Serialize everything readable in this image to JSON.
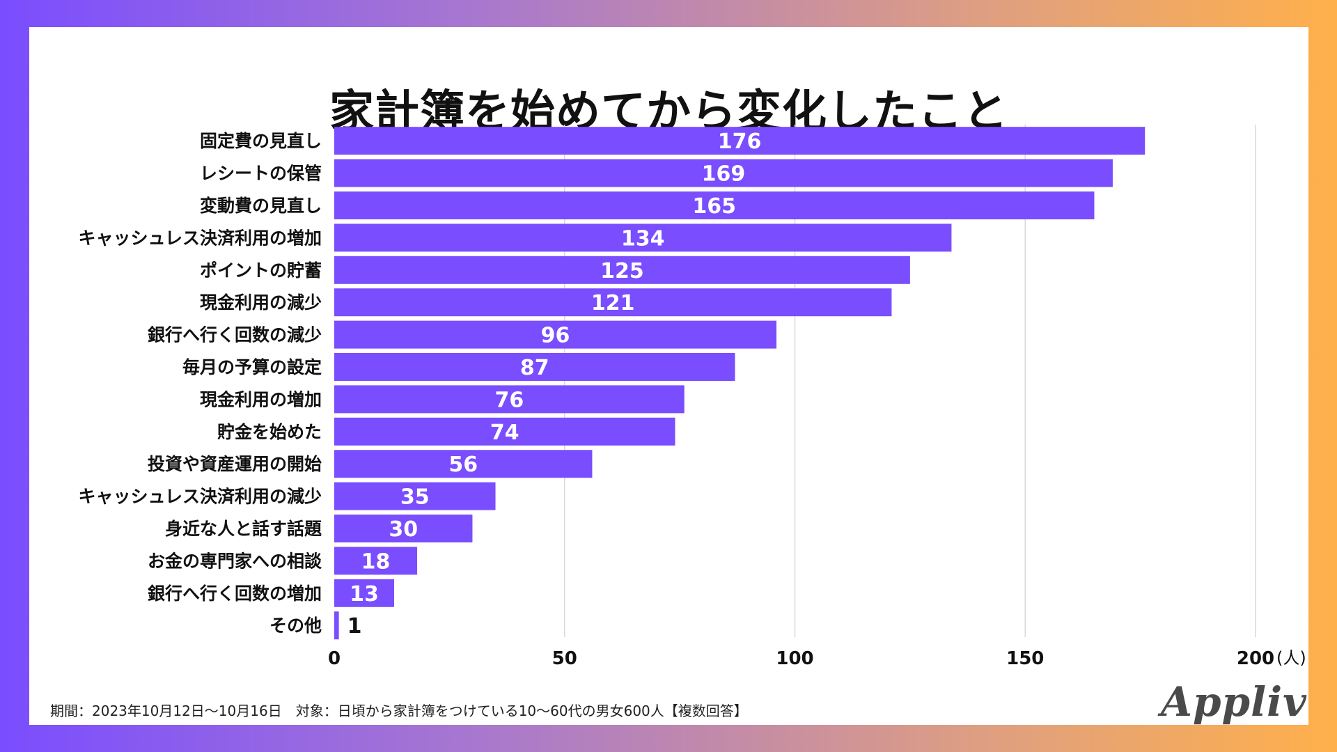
{
  "title": "家計簿を始めてから変化したこと",
  "footnote": "期間：2023年10月12日〜10月16日　対象：日頃から家計簿をつけている10〜60代の男女600人【複数回答】",
  "logo": "Appliv",
  "colors": {
    "bar": "#7a4dff",
    "grid": "#d9d9d9",
    "label": "#111111",
    "value_inside": "#ffffff",
    "value_outside": "#111111"
  },
  "chart_data": {
    "type": "bar",
    "orientation": "horizontal",
    "title": "家計簿を始めてから変化したこと",
    "categories": [
      "固定費の見直し",
      "レシートの保管",
      "変動費の見直し",
      "キャッシュレス決済利用の増加",
      "ポイントの貯蓄",
      "現金利用の減少",
      "銀行へ行く回数の減少",
      "毎月の予算の設定",
      "現金利用の増加",
      "貯金を始めた",
      "投資や資産運用の開始",
      "キャッシュレス決済利用の減少",
      "身近な人と話す話題",
      "お金の専門家への相談",
      "銀行へ行く回数の増加",
      "その他"
    ],
    "values": [
      176,
      169,
      165,
      134,
      125,
      121,
      96,
      87,
      76,
      74,
      56,
      35,
      30,
      18,
      13,
      1
    ],
    "xlim": [
      0,
      200
    ],
    "xticks": [
      "0",
      "50",
      "100",
      "150",
      "200"
    ],
    "xtick_values": [
      0,
      50,
      100,
      150,
      200
    ],
    "unit_label": "(人)",
    "xlabel": "",
    "ylabel": "",
    "grid": true
  }
}
